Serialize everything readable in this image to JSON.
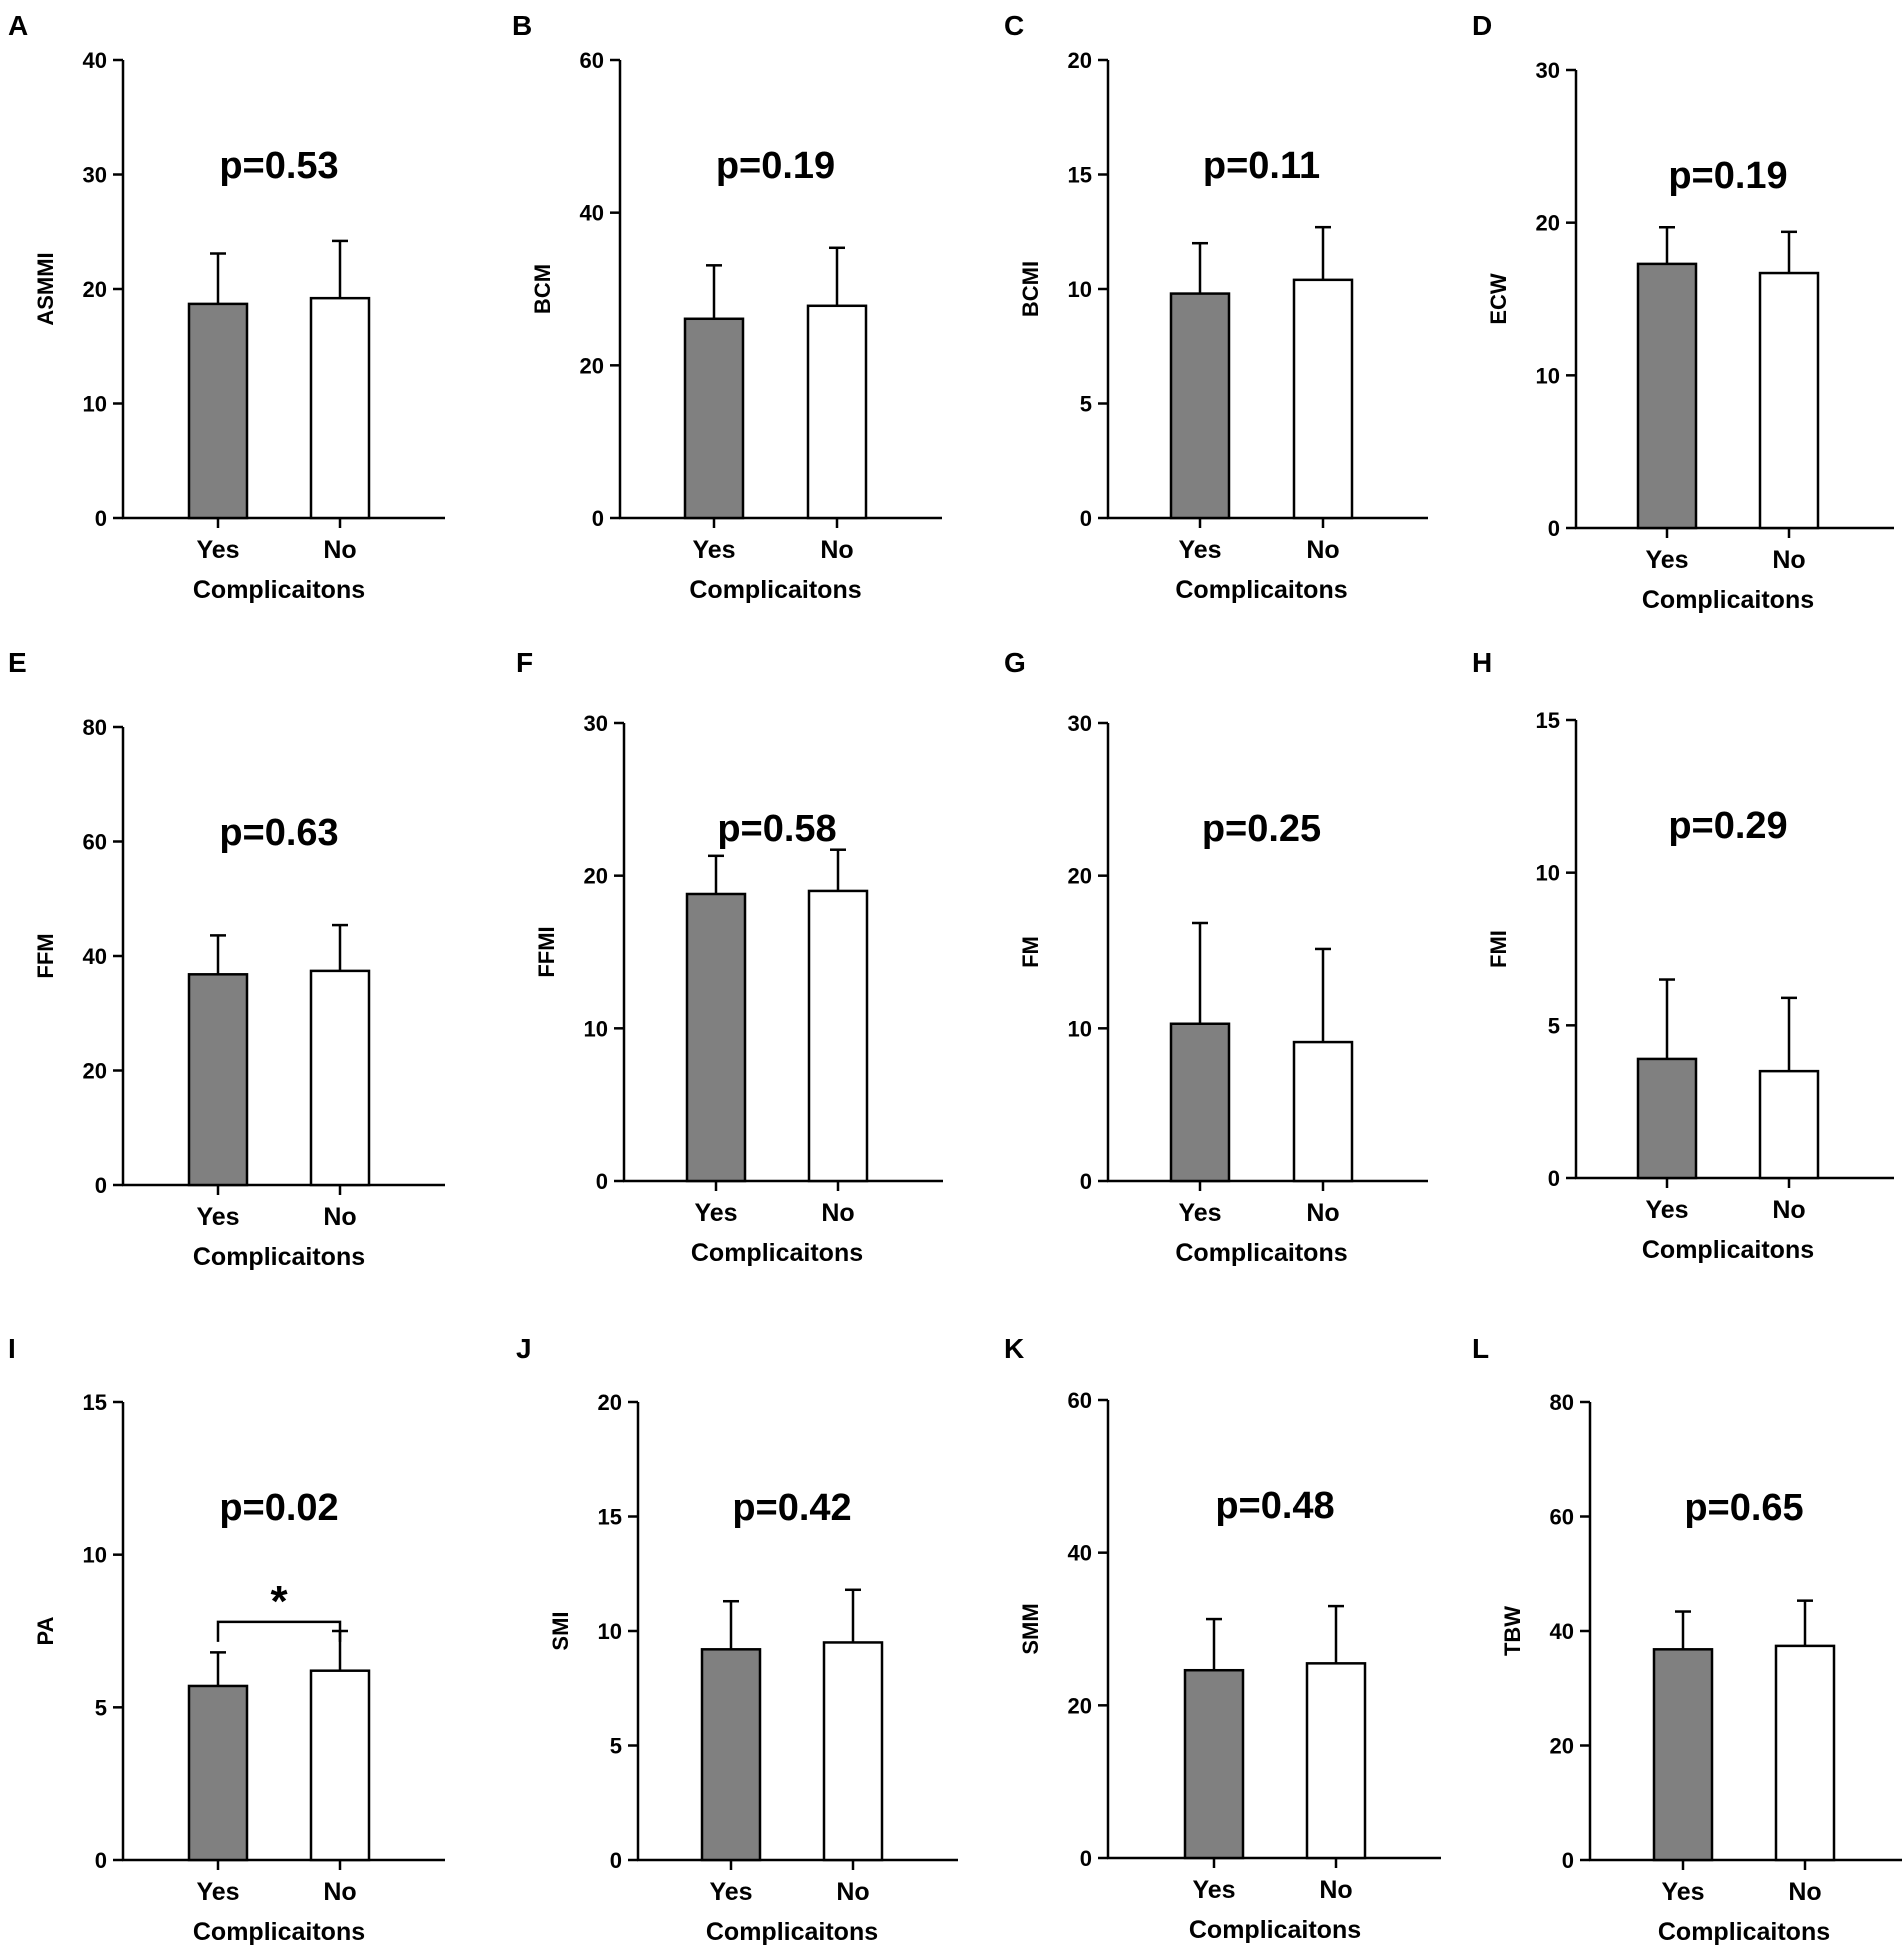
{
  "figure": {
    "x_axis_label": "Complicaitons",
    "categories": [
      "Yes",
      "No"
    ],
    "colors": {
      "yes_bar": "#808080",
      "no_bar": "#ffffff",
      "stroke": "#000000"
    }
  },
  "chart_data": [
    {
      "panel": "A",
      "type": "bar",
      "ylabel": "ASMMI",
      "p_text": "p=0.53",
      "ylim": [
        0,
        40
      ],
      "yticks": [
        0,
        10,
        20,
        30,
        40
      ],
      "xlabel": "Complicaitons",
      "categories": [
        "Yes",
        "No"
      ],
      "values": [
        18.7,
        19.2
      ],
      "sd": [
        4.4,
        5.0
      ],
      "significance": ""
    },
    {
      "panel": "B",
      "type": "bar",
      "ylabel": "BCM",
      "p_text": "p=0.19",
      "ylim": [
        0,
        60
      ],
      "yticks": [
        0,
        20,
        40,
        60
      ],
      "xlabel": "Complicaitons",
      "categories": [
        "Yes",
        "No"
      ],
      "values": [
        26.1,
        27.8
      ],
      "sd": [
        7.0,
        7.6
      ],
      "significance": ""
    },
    {
      "panel": "C",
      "type": "bar",
      "ylabel": "BCMI",
      "p_text": "p=0.11",
      "ylim": [
        0,
        20
      ],
      "yticks": [
        0,
        5,
        10,
        15,
        20
      ],
      "xlabel": "Complicaitons",
      "categories": [
        "Yes",
        "No"
      ],
      "values": [
        9.8,
        10.4
      ],
      "sd": [
        2.2,
        2.3
      ],
      "significance": ""
    },
    {
      "panel": "D",
      "type": "bar",
      "ylabel": "ECW",
      "p_text": "p=0.19",
      "ylim": [
        0,
        30
      ],
      "yticks": [
        0,
        10,
        20,
        30
      ],
      "xlabel": "Complicaitons",
      "categories": [
        "Yes",
        "No"
      ],
      "values": [
        17.3,
        16.7
      ],
      "sd": [
        2.4,
        2.7
      ],
      "significance": ""
    },
    {
      "panel": "E",
      "type": "bar",
      "ylabel": "FFM",
      "p_text": "p=0.63",
      "ylim": [
        0,
        80
      ],
      "yticks": [
        0,
        20,
        40,
        60,
        80
      ],
      "xlabel": "Complicaitons",
      "categories": [
        "Yes",
        "No"
      ],
      "values": [
        36.8,
        37.4
      ],
      "sd": [
        6.8,
        8.0
      ],
      "significance": ""
    },
    {
      "panel": "F",
      "type": "bar",
      "ylabel": "FFMI",
      "p_text": "p=0.58",
      "ylim": [
        0,
        30
      ],
      "yticks": [
        0,
        10,
        20,
        30
      ],
      "xlabel": "Complicaitons",
      "categories": [
        "Yes",
        "No"
      ],
      "values": [
        18.8,
        19.0
      ],
      "sd": [
        2.5,
        2.7
      ],
      "significance": ""
    },
    {
      "panel": "G",
      "type": "bar",
      "ylabel": "FM",
      "p_text": "p=0.25",
      "ylim": [
        0,
        30
      ],
      "yticks": [
        0,
        10,
        20,
        30
      ],
      "xlabel": "Complicaitons",
      "categories": [
        "Yes",
        "No"
      ],
      "values": [
        10.3,
        9.1
      ],
      "sd": [
        6.6,
        6.1
      ],
      "significance": ""
    },
    {
      "panel": "H",
      "type": "bar",
      "ylabel": "FMI",
      "p_text": "p=0.29",
      "ylim": [
        0,
        15
      ],
      "yticks": [
        0,
        5,
        10,
        15
      ],
      "xlabel": "Complicaitons",
      "categories": [
        "Yes",
        "No"
      ],
      "values": [
        3.9,
        3.5
      ],
      "sd": [
        2.6,
        2.4
      ],
      "significance": ""
    },
    {
      "panel": "I",
      "type": "bar",
      "ylabel": "PA",
      "p_text": "p=0.02",
      "ylim": [
        0,
        15
      ],
      "yticks": [
        0,
        5,
        10,
        15
      ],
      "xlabel": "Complicaitons",
      "categories": [
        "Yes",
        "No"
      ],
      "values": [
        5.7,
        6.2
      ],
      "sd": [
        1.1,
        1.3
      ],
      "significance": "*"
    },
    {
      "panel": "J",
      "type": "bar",
      "ylabel": "SMI",
      "p_text": "p=0.42",
      "ylim": [
        0,
        20
      ],
      "yticks": [
        0,
        5,
        10,
        15,
        20
      ],
      "xlabel": "Complicaitons",
      "categories": [
        "Yes",
        "No"
      ],
      "values": [
        9.2,
        9.5
      ],
      "sd": [
        2.1,
        2.3
      ],
      "significance": ""
    },
    {
      "panel": "K",
      "type": "bar",
      "ylabel": "SMM",
      "p_text": "p=0.48",
      "ylim": [
        0,
        60
      ],
      "yticks": [
        0,
        20,
        40,
        60
      ],
      "xlabel": "Complicaitons",
      "categories": [
        "Yes",
        "No"
      ],
      "values": [
        24.6,
        25.5
      ],
      "sd": [
        6.7,
        7.5
      ],
      "significance": ""
    },
    {
      "panel": "L",
      "type": "bar",
      "ylabel": "TBW",
      "p_text": "p=0.65",
      "ylim": [
        0,
        80
      ],
      "yticks": [
        0,
        20,
        40,
        60,
        80
      ],
      "xlabel": "Complicaitons",
      "categories": [
        "Yes",
        "No"
      ],
      "values": [
        36.8,
        37.4
      ],
      "sd": [
        6.6,
        7.9
      ],
      "significance": ""
    }
  ]
}
